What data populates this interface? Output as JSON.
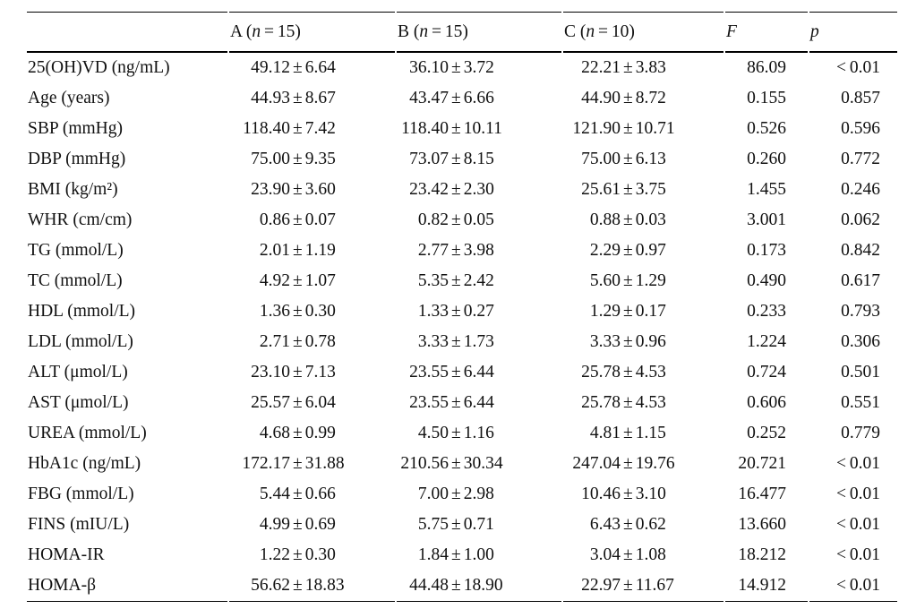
{
  "table": {
    "pm_symbol": "±",
    "headers": {
      "label": "",
      "a": {
        "pre": "A (",
        "var": "n",
        "post": " = 15)"
      },
      "b": {
        "pre": "B (",
        "var": "n",
        "post": " = 15)"
      },
      "c": {
        "pre": "C (",
        "var": "n",
        "post": " = 10)"
      },
      "f": {
        "var": "F"
      },
      "p": {
        "var": "p"
      }
    },
    "rows": [
      {
        "label": "25(OH)VD (ng/mL)",
        "a": [
          "49.12",
          "6.64"
        ],
        "b": [
          "36.10",
          "3.72"
        ],
        "c": [
          "22.21",
          "3.83"
        ],
        "f": "86.09",
        "p": "< 0.01"
      },
      {
        "label": "Age (years)",
        "a": [
          "44.93",
          "8.67"
        ],
        "b": [
          "43.47",
          "6.66"
        ],
        "c": [
          "44.90",
          "8.72"
        ],
        "f": "0.155",
        "p": "0.857"
      },
      {
        "label": "SBP (mmHg)",
        "a": [
          "118.40",
          "7.42"
        ],
        "b": [
          "118.40",
          "10.11"
        ],
        "c": [
          "121.90",
          "10.71"
        ],
        "f": "0.526",
        "p": "0.596"
      },
      {
        "label": "DBP (mmHg)",
        "a": [
          "75.00",
          "9.35"
        ],
        "b": [
          "73.07",
          "8.15"
        ],
        "c": [
          "75.00",
          "6.13"
        ],
        "f": "0.260",
        "p": "0.772"
      },
      {
        "label": "BMI (kg/m²)",
        "a": [
          "23.90",
          "3.60"
        ],
        "b": [
          "23.42",
          "2.30"
        ],
        "c": [
          "25.61",
          "3.75"
        ],
        "f": "1.455",
        "p": "0.246"
      },
      {
        "label": "WHR (cm/cm)",
        "a": [
          "0.86",
          "0.07"
        ],
        "b": [
          "0.82",
          "0.05"
        ],
        "c": [
          "0.88",
          "0.03"
        ],
        "f": "3.001",
        "p": "0.062"
      },
      {
        "label": "TG (mmol/L)",
        "a": [
          "2.01",
          "1.19"
        ],
        "b": [
          "2.77",
          "3.98"
        ],
        "c": [
          "2.29",
          "0.97"
        ],
        "f": "0.173",
        "p": "0.842"
      },
      {
        "label": "TC (mmol/L)",
        "a": [
          "4.92",
          "1.07"
        ],
        "b": [
          "5.35",
          "2.42"
        ],
        "c": [
          "5.60",
          "1.29"
        ],
        "f": "0.490",
        "p": "0.617"
      },
      {
        "label": "HDL (mmol/L)",
        "a": [
          "1.36",
          "0.30"
        ],
        "b": [
          "1.33",
          "0.27"
        ],
        "c": [
          "1.29",
          "0.17"
        ],
        "f": "0.233",
        "p": "0.793"
      },
      {
        "label": "LDL (mmol/L)",
        "a": [
          "2.71",
          "0.78"
        ],
        "b": [
          "3.33",
          "1.73"
        ],
        "c": [
          "3.33",
          "0.96"
        ],
        "f": "1.224",
        "p": "0.306"
      },
      {
        "label": "ALT (μmol/L)",
        "a": [
          "23.10",
          "7.13"
        ],
        "b": [
          "23.55",
          "6.44"
        ],
        "c": [
          "25.78",
          "4.53"
        ],
        "f": "0.724",
        "p": "0.501"
      },
      {
        "label": "AST (μmol/L)",
        "a": [
          "25.57",
          "6.04"
        ],
        "b": [
          "23.55",
          "6.44"
        ],
        "c": [
          "25.78",
          "4.53"
        ],
        "f": "0.606",
        "p": "0.551"
      },
      {
        "label": "UREA (mmol/L)",
        "a": [
          "4.68",
          "0.99"
        ],
        "b": [
          "4.50",
          "1.16"
        ],
        "c": [
          "4.81",
          "1.15"
        ],
        "f": "0.252",
        "p": "0.779"
      },
      {
        "label": "HbA1c (ng/mL)",
        "a": [
          "172.17",
          "31.88"
        ],
        "b": [
          "210.56",
          "30.34"
        ],
        "c": [
          "247.04",
          "19.76"
        ],
        "f": "20.721",
        "p": "< 0.01"
      },
      {
        "label": "FBG (mmol/L)",
        "a": [
          "5.44",
          "0.66"
        ],
        "b": [
          "7.00",
          "2.98"
        ],
        "c": [
          "10.46",
          "3.10"
        ],
        "f": "16.477",
        "p": "< 0.01"
      },
      {
        "label": "FINS (mIU/L)",
        "a": [
          "4.99",
          "0.69"
        ],
        "b": [
          "5.75",
          "0.71"
        ],
        "c": [
          "6.43",
          "0.62"
        ],
        "f": "13.660",
        "p": "< 0.01"
      },
      {
        "label": "HOMA-IR",
        "a": [
          "1.22",
          "0.30"
        ],
        "b": [
          "1.84",
          "1.00"
        ],
        "c": [
          "3.04",
          "1.08"
        ],
        "f": "18.212",
        "p": "< 0.01"
      },
      {
        "label": "HOMA-β",
        "a": [
          "56.62",
          "18.83"
        ],
        "b": [
          "44.48",
          "18.90"
        ],
        "c": [
          "22.97",
          "11.67"
        ],
        "f": "14.912",
        "p": "< 0.01"
      }
    ]
  }
}
